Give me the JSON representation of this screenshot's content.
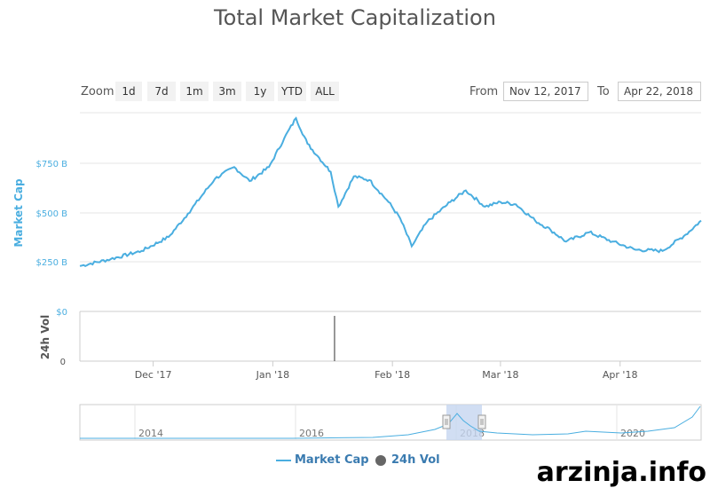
{
  "title": "Total Market Capitalization",
  "zoom": {
    "label": "Zoom",
    "buttons": [
      "1d",
      "7d",
      "1m",
      "3m",
      "1y",
      "YTD",
      "ALL"
    ]
  },
  "range": {
    "from_label": "From",
    "from_value": "Nov 12, 2017",
    "to_label": "To",
    "to_value": "Apr 22, 2018"
  },
  "legend": {
    "market_cap": "Market Cap",
    "vol": "24h Vol"
  },
  "watermark": "arzinja.info",
  "colors": {
    "line": "#4aaee0",
    "grid": "#e6e6e6",
    "nav_fill": "#c5d6f0",
    "vol": "#333333"
  },
  "chart_data": {
    "type": "line",
    "ylabel": "Market Cap",
    "y2label": "24h Vol",
    "yticks": [
      "$750 B",
      "$500 B",
      "$250 B"
    ],
    "y2ticks": [
      "$0",
      "0"
    ],
    "xticks": [
      "Dec '17",
      "Jan '18",
      "Feb '18",
      "Mar '18",
      "Apr '18"
    ],
    "navigator_ticks": [
      "2014",
      "2016",
      "2018",
      "2020"
    ],
    "ylim": [
      0,
      850
    ],
    "x_range": [
      "2017-11-12",
      "2018-04-22"
    ],
    "series": [
      {
        "name": "Market Cap",
        "x": [
          "2017-11-12",
          "2017-11-20",
          "2017-11-28",
          "2017-12-05",
          "2017-12-10",
          "2017-12-17",
          "2017-12-22",
          "2017-12-26",
          "2017-12-31",
          "2018-01-04",
          "2018-01-07",
          "2018-01-10",
          "2018-01-13",
          "2018-01-16",
          "2018-01-18",
          "2018-01-22",
          "2018-01-26",
          "2018-01-31",
          "2018-02-03",
          "2018-02-06",
          "2018-02-10",
          "2018-02-16",
          "2018-02-20",
          "2018-02-25",
          "2018-03-01",
          "2018-03-05",
          "2018-03-10",
          "2018-03-14",
          "2018-03-18",
          "2018-03-24",
          "2018-03-30",
          "2018-04-05",
          "2018-04-12",
          "2018-04-18",
          "2018-04-22"
        ],
        "values": [
          195,
          225,
          260,
          320,
          420,
          570,
          620,
          560,
          620,
          745,
          830,
          720,
          660,
          600,
          450,
          580,
          565,
          470,
          400,
          280,
          385,
          470,
          520,
          450,
          470,
          460,
          390,
          350,
          300,
          340,
          300,
          265,
          260,
          330,
          390
        ]
      }
    ],
    "volume_spike": {
      "x": "2018-01-17"
    },
    "navigator_selection": [
      "2017-11-12",
      "2018-04-22"
    ]
  }
}
